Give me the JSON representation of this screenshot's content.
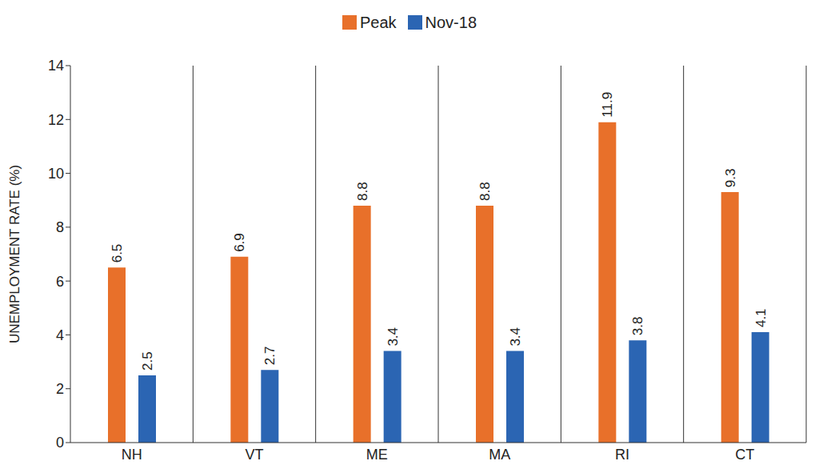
{
  "chart_data": {
    "type": "bar",
    "categories": [
      "NH",
      "VT",
      "ME",
      "MA",
      "RI",
      "CT"
    ],
    "series": [
      {
        "name": "Peak",
        "color": "#e8702a",
        "values": [
          6.5,
          6.9,
          8.8,
          8.8,
          11.9,
          9.3
        ]
      },
      {
        "name": "Nov-18",
        "color": "#2b65b3",
        "values": [
          2.5,
          2.7,
          3.4,
          3.4,
          3.8,
          4.1
        ]
      }
    ],
    "y_label": "UNEMPLOYMENT RATE (%)",
    "ylim": [
      0,
      14
    ],
    "yticks": [
      0,
      2,
      4,
      6,
      8,
      10,
      12,
      14
    ],
    "grid": false,
    "legend": "top",
    "data_labels": true
  }
}
